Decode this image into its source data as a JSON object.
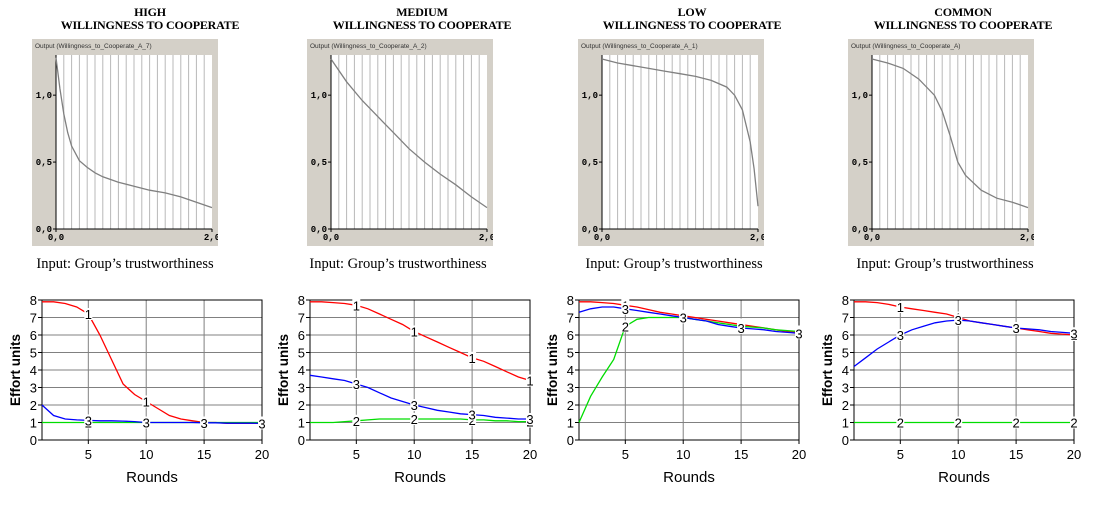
{
  "panels": [
    {
      "title_line1": "HIGH",
      "title_line2": "WILLINGNESS TO COOPERATE",
      "upper_header": "Output (Willingness_to_Cooperate_A_7)",
      "caption": "Input: Group’s trustworthiness"
    },
    {
      "title_line1": "MEDIUM",
      "title_line2": "WILLINGNESS TO COOPERATE",
      "upper_header": "Output (Willingness_to_Cooperate_A_2)",
      "caption": "Input: Group’s trustworthiness"
    },
    {
      "title_line1": "LOW",
      "title_line2": "WILLINGNESS TO COOPERATE",
      "upper_header": "Output (Willingness_to_Cooperate_A_1)",
      "caption": "Input: Group’s trustworthiness"
    },
    {
      "title_line1": "COMMON",
      "title_line2": "WILLINGNESS TO COOPERATE",
      "upper_header": "Output (Willingness_to_Cooperate_A)",
      "caption": "Input: Group’s trustworthiness"
    }
  ],
  "chart_data": [
    {
      "type": "line",
      "xlim": [
        0,
        2
      ],
      "ylim": [
        0,
        1.3
      ],
      "xticks": [
        "0,0",
        "2,0"
      ],
      "yticks": [
        "0,0",
        "0,5",
        "1,0"
      ],
      "grid": true,
      "series": [
        {
          "color": "#808080",
          "x": [
            0,
            0.05,
            0.1,
            0.15,
            0.2,
            0.3,
            0.4,
            0.5,
            0.6,
            0.8,
            1.0,
            1.2,
            1.4,
            1.6,
            1.8,
            2.0
          ],
          "y": [
            1.28,
            1.05,
            0.86,
            0.72,
            0.62,
            0.51,
            0.46,
            0.42,
            0.39,
            0.35,
            0.32,
            0.29,
            0.27,
            0.24,
            0.2,
            0.16
          ]
        }
      ]
    },
    {
      "type": "line",
      "xlim": [
        0,
        2
      ],
      "ylim": [
        0,
        1.3
      ],
      "xticks": [
        "0,0",
        "2,0"
      ],
      "yticks": [
        "0,0",
        "0,5",
        "1,0"
      ],
      "grid": true,
      "series": [
        {
          "color": "#808080",
          "x": [
            0,
            0.2,
            0.4,
            0.6,
            0.8,
            1.0,
            1.2,
            1.4,
            1.6,
            1.8,
            2.0
          ],
          "y": [
            1.27,
            1.1,
            0.96,
            0.84,
            0.72,
            0.6,
            0.5,
            0.41,
            0.33,
            0.24,
            0.16
          ]
        }
      ]
    },
    {
      "type": "line",
      "xlim": [
        0,
        2
      ],
      "ylim": [
        0,
        1.3
      ],
      "xticks": [
        "0,0",
        "2,0"
      ],
      "yticks": [
        "0,0",
        "0,5",
        "1,0"
      ],
      "grid": true,
      "series": [
        {
          "color": "#808080",
          "x": [
            0,
            0.2,
            0.4,
            0.6,
            0.8,
            1.0,
            1.2,
            1.4,
            1.6,
            1.7,
            1.8,
            1.9,
            1.95,
            2.0
          ],
          "y": [
            1.27,
            1.24,
            1.22,
            1.2,
            1.18,
            1.16,
            1.14,
            1.11,
            1.06,
            1.0,
            0.89,
            0.65,
            0.45,
            0.17
          ]
        }
      ]
    },
    {
      "type": "line",
      "xlim": [
        0,
        2
      ],
      "ylim": [
        0,
        1.3
      ],
      "xticks": [
        "0,0",
        "2,0"
      ],
      "yticks": [
        "0,0",
        "0,5",
        "1,0"
      ],
      "grid": true,
      "series": [
        {
          "color": "#808080",
          "x": [
            0,
            0.2,
            0.4,
            0.6,
            0.8,
            0.9,
            1.0,
            1.1,
            1.2,
            1.4,
            1.6,
            1.8,
            2.0
          ],
          "y": [
            1.27,
            1.24,
            1.2,
            1.12,
            1.0,
            0.88,
            0.7,
            0.5,
            0.4,
            0.29,
            0.23,
            0.2,
            0.16
          ]
        }
      ]
    },
    {
      "type": "line",
      "x": [
        1,
        2,
        3,
        4,
        5,
        6,
        7,
        8,
        9,
        10,
        11,
        12,
        13,
        14,
        15,
        16,
        17,
        18,
        19,
        20
      ],
      "xlim": [
        1,
        20
      ],
      "ylim": [
        0,
        8
      ],
      "xticks": [
        5,
        10,
        15,
        20
      ],
      "yticks": [
        0,
        1,
        2,
        3,
        4,
        5,
        6,
        7,
        8
      ],
      "xlabel": "Rounds",
      "ylabel": "Effort units",
      "grid": true,
      "series": [
        {
          "marker": "1",
          "color": "#ff0000",
          "values": [
            7.9,
            7.9,
            7.8,
            7.6,
            7.2,
            6.0,
            4.6,
            3.2,
            2.6,
            2.2,
            1.8,
            1.4,
            1.2,
            1.1,
            1.0,
            1.0,
            0.95,
            0.95,
            0.95,
            0.95
          ]
        },
        {
          "marker": "2",
          "color": "#00dd00",
          "values": [
            1.0,
            1.0,
            1.0,
            1.0,
            1.0,
            1.0,
            1.0,
            1.0,
            1.0,
            1.0,
            1.0,
            1.0,
            1.0,
            1.0,
            1.0,
            1.0,
            1.0,
            1.0,
            1.0,
            1.0
          ]
        },
        {
          "marker": "3",
          "color": "#0000ff",
          "values": [
            2.0,
            1.4,
            1.2,
            1.15,
            1.12,
            1.1,
            1.1,
            1.08,
            1.05,
            1.0,
            1.0,
            1.0,
            1.0,
            1.0,
            0.98,
            0.98,
            0.96,
            0.96,
            0.96,
            0.95
          ]
        }
      ]
    },
    {
      "type": "line",
      "x": [
        1,
        2,
        3,
        4,
        5,
        6,
        7,
        8,
        9,
        10,
        11,
        12,
        13,
        14,
        15,
        16,
        17,
        18,
        19,
        20
      ],
      "xlim": [
        1,
        20
      ],
      "ylim": [
        0,
        8
      ],
      "xticks": [
        5,
        10,
        15,
        20
      ],
      "yticks": [
        0,
        1,
        2,
        3,
        4,
        5,
        6,
        7,
        8
      ],
      "xlabel": "Rounds",
      "ylabel": "Effort units",
      "grid": true,
      "series": [
        {
          "marker": "1",
          "color": "#ff0000",
          "values": [
            7.9,
            7.9,
            7.85,
            7.8,
            7.7,
            7.5,
            7.2,
            6.9,
            6.6,
            6.2,
            5.9,
            5.6,
            5.3,
            5.0,
            4.7,
            4.5,
            4.2,
            3.9,
            3.6,
            3.4
          ]
        },
        {
          "marker": "2",
          "color": "#00dd00",
          "values": [
            1.0,
            1.0,
            1.0,
            1.05,
            1.1,
            1.15,
            1.2,
            1.2,
            1.2,
            1.2,
            1.2,
            1.2,
            1.2,
            1.2,
            1.15,
            1.15,
            1.1,
            1.1,
            1.05,
            1.05
          ]
        },
        {
          "marker": "3",
          "color": "#0000ff",
          "values": [
            3.7,
            3.6,
            3.5,
            3.4,
            3.2,
            3.0,
            2.7,
            2.4,
            2.2,
            2.0,
            1.85,
            1.7,
            1.6,
            1.5,
            1.45,
            1.4,
            1.3,
            1.25,
            1.2,
            1.2
          ]
        }
      ]
    },
    {
      "type": "line",
      "x": [
        1,
        2,
        3,
        4,
        5,
        6,
        7,
        8,
        9,
        10,
        11,
        12,
        13,
        14,
        15,
        16,
        17,
        18,
        19,
        20
      ],
      "xlim": [
        1,
        20
      ],
      "ylim": [
        0,
        8
      ],
      "xticks": [
        5,
        10,
        15,
        20
      ],
      "yticks": [
        0,
        1,
        2,
        3,
        4,
        5,
        6,
        7,
        8
      ],
      "xlabel": "Rounds",
      "ylabel": "Effort units",
      "grid": true,
      "series": [
        {
          "marker": "1",
          "color": "#ff0000",
          "values": [
            7.9,
            7.9,
            7.85,
            7.8,
            7.7,
            7.6,
            7.45,
            7.3,
            7.2,
            7.1,
            7.0,
            6.9,
            6.8,
            6.7,
            6.6,
            6.5,
            6.4,
            6.3,
            6.2,
            6.15
          ]
        },
        {
          "marker": "2",
          "color": "#00dd00",
          "values": [
            1.0,
            2.5,
            3.6,
            4.6,
            6.5,
            6.9,
            7.0,
            7.0,
            7.0,
            7.0,
            6.9,
            6.8,
            6.7,
            6.6,
            6.5,
            6.45,
            6.4,
            6.3,
            6.25,
            6.2
          ]
        },
        {
          "marker": "3",
          "color": "#0000ff",
          "values": [
            7.3,
            7.5,
            7.6,
            7.6,
            7.5,
            7.4,
            7.3,
            7.2,
            7.1,
            7.0,
            6.9,
            6.8,
            6.6,
            6.5,
            6.4,
            6.35,
            6.3,
            6.2,
            6.15,
            6.1
          ]
        }
      ]
    },
    {
      "type": "line",
      "x": [
        1,
        2,
        3,
        4,
        5,
        6,
        7,
        8,
        9,
        10,
        11,
        12,
        13,
        14,
        15,
        16,
        17,
        18,
        19,
        20
      ],
      "xlim": [
        1,
        20
      ],
      "ylim": [
        0,
        8
      ],
      "xticks": [
        5,
        10,
        15,
        20
      ],
      "yticks": [
        0,
        1,
        2,
        3,
        4,
        5,
        6,
        7,
        8
      ],
      "xlabel": "Rounds",
      "ylabel": "Effort units",
      "grid": true,
      "series": [
        {
          "marker": "1",
          "color": "#ff0000",
          "values": [
            7.9,
            7.9,
            7.85,
            7.75,
            7.6,
            7.5,
            7.4,
            7.3,
            7.2,
            7.0,
            6.8,
            6.7,
            6.6,
            6.5,
            6.4,
            6.3,
            6.2,
            6.1,
            6.05,
            6.0
          ]
        },
        {
          "marker": "2",
          "color": "#00dd00",
          "values": [
            1.0,
            1.0,
            1.0,
            1.0,
            1.0,
            1.0,
            1.0,
            1.0,
            1.0,
            1.0,
            1.0,
            1.0,
            1.0,
            1.0,
            1.0,
            1.0,
            1.0,
            1.0,
            1.0,
            1.0
          ]
        },
        {
          "marker": "3",
          "color": "#0000ff",
          "values": [
            4.2,
            4.7,
            5.2,
            5.6,
            6.0,
            6.3,
            6.5,
            6.7,
            6.8,
            6.85,
            6.8,
            6.7,
            6.6,
            6.5,
            6.4,
            6.35,
            6.3,
            6.2,
            6.15,
            6.1
          ]
        }
      ]
    }
  ]
}
